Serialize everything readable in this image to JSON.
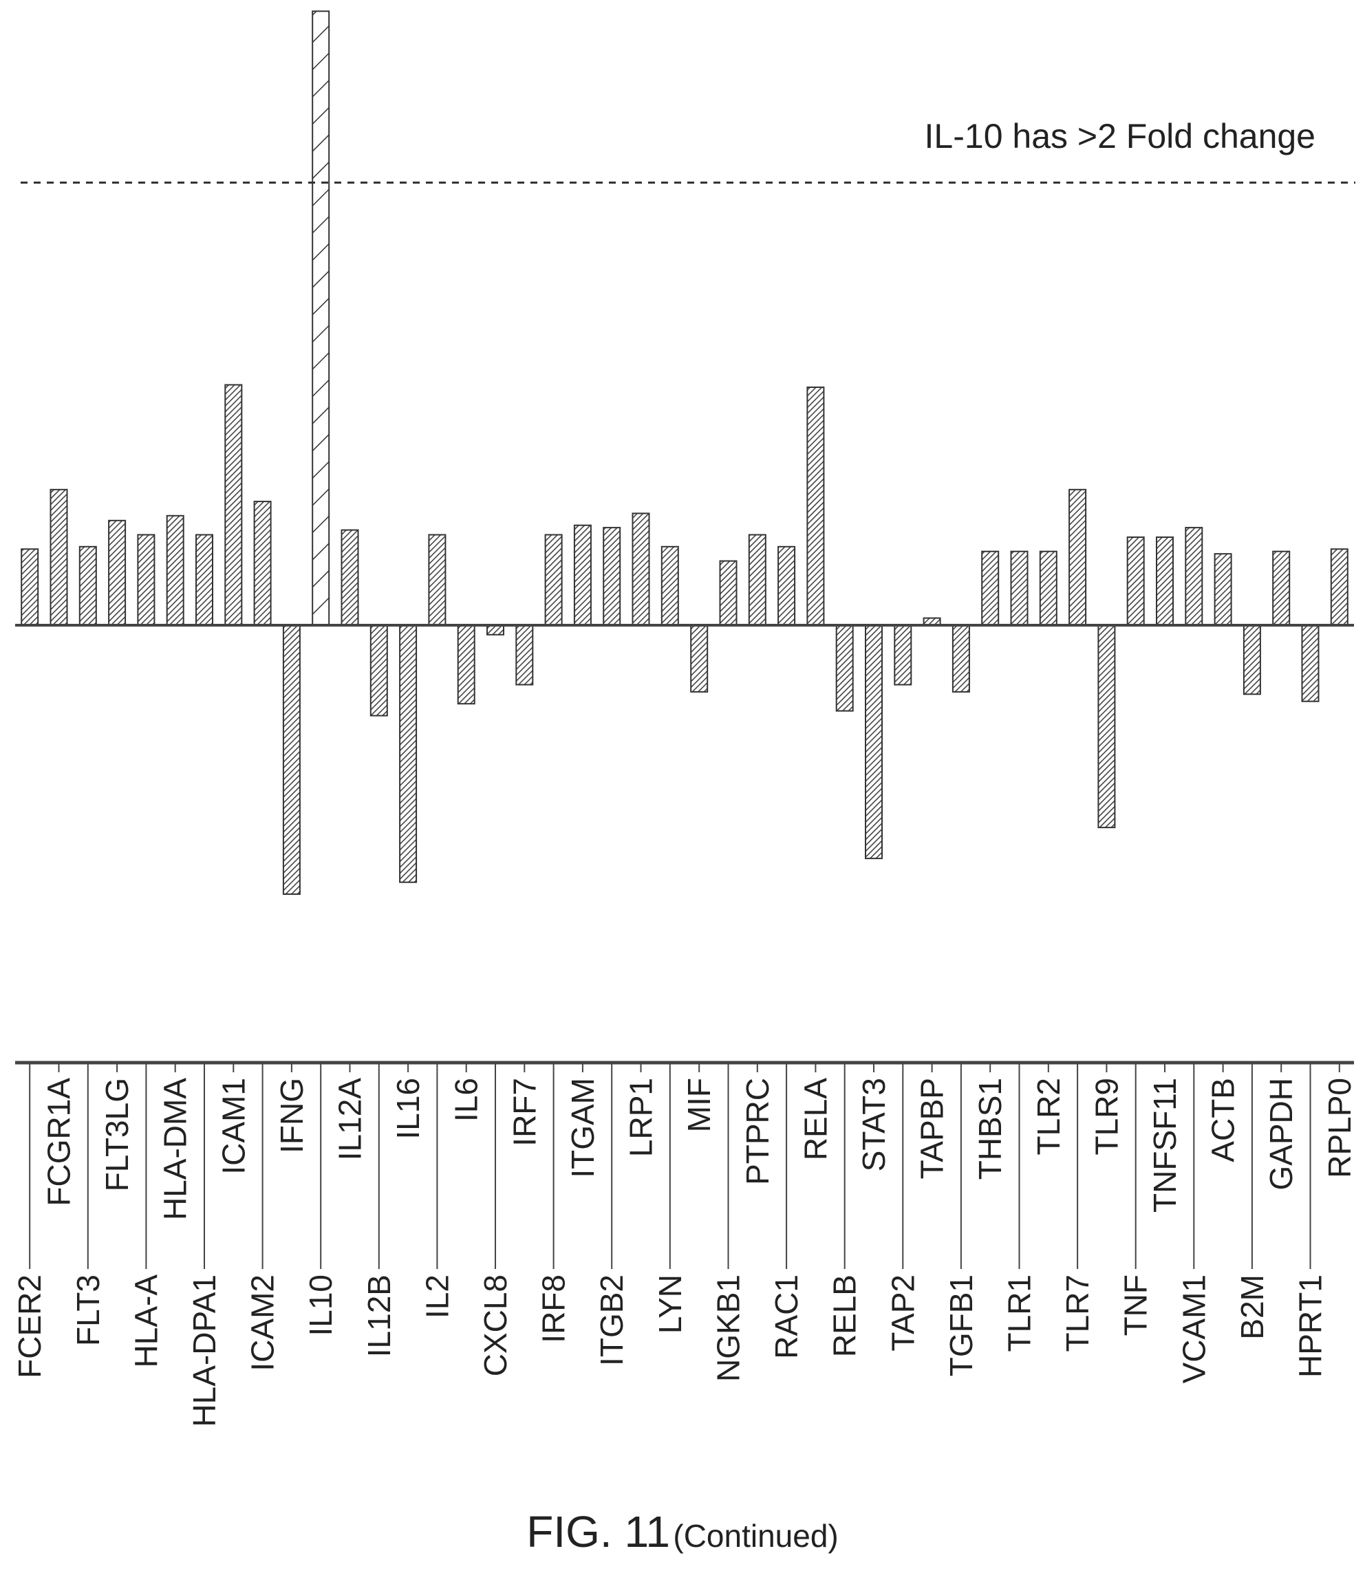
{
  "chart_data": {
    "type": "bar",
    "categories": [
      "FCER2",
      "FCGR1A",
      "FLT3",
      "FLT3LG",
      "HLA-A",
      "HLA-DMA",
      "HLA-DPA1",
      "ICAM1",
      "ICAM2",
      "IFNG",
      "IL10",
      "IL12A",
      "IL12B",
      "IL16",
      "IL2",
      "IL6",
      "CXCL8",
      "IRF7",
      "IRF8",
      "ITGAM",
      "ITGB2",
      "LRP1",
      "LYN",
      "MIF",
      "NGKB1",
      "PTPRC",
      "RAC1",
      "RELA",
      "RELB",
      "STAT3",
      "TAP2",
      "TAPBP",
      "TGFB1",
      "THBS1",
      "TLR1",
      "TLR2",
      "TLR7",
      "TLR9",
      "TNF",
      "TNFSF11",
      "VCAM1",
      "ACTB",
      "B2M",
      "GAPDH",
      "HPRT1",
      "RPLP0"
    ],
    "values": [
      0.32,
      0.57,
      0.33,
      0.44,
      0.38,
      0.46,
      0.38,
      1.01,
      0.52,
      -1.13,
      2.58,
      0.4,
      -0.38,
      -1.08,
      0.38,
      -0.33,
      -0.04,
      -0.25,
      0.38,
      0.42,
      0.41,
      0.47,
      0.33,
      -0.28,
      0.27,
      0.38,
      0.33,
      1.0,
      -0.36,
      -0.98,
      -0.25,
      0.03,
      -0.28,
      0.31,
      0.31,
      0.31,
      0.57,
      -0.85,
      0.37,
      0.37,
      0.41,
      0.3,
      -0.29,
      0.31,
      -0.32,
      0.32
    ],
    "ylim": [
      -1.5,
      2.6
    ],
    "reference_line": 1.86,
    "annotation": "IL-10 has >2 Fold change",
    "xlabel": "",
    "ylabel": "",
    "grid": false,
    "legend": "none"
  },
  "caption": {
    "main": "FIG. 11",
    "sub": "(Continued)"
  }
}
